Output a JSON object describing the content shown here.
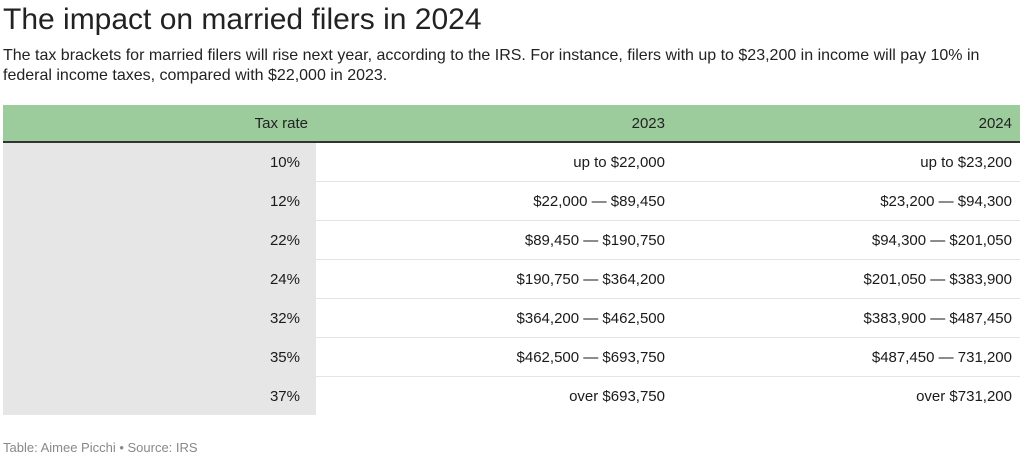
{
  "title": "The impact on married filers in 2024",
  "subtitle": "The tax brackets for married filers will rise next year, according to the IRS. For instance, filers with up to $23,200 in income will pay 10% in federal income taxes, compared with $22,000 in 2023.",
  "footer": "Table: Aimee Picchi • Source: IRS",
  "colors": {
    "header_bg": "#9ccc9c",
    "rate_column_bg": "#e6e6e6"
  },
  "chart_data": {
    "type": "table",
    "columns": [
      "Tax rate",
      "2023",
      "2024"
    ],
    "rows": [
      [
        "10%",
        "up to $22,000",
        "up to $23,200"
      ],
      [
        "12%",
        "$22,000 — $89,450",
        "$23,200 — $94,300"
      ],
      [
        "22%",
        "$89,450 — $190,750",
        "$94,300 — $201,050"
      ],
      [
        "24%",
        "$190,750 — $364,200",
        "$201,050 — $383,900"
      ],
      [
        "32%",
        "$364,200 — $462,500",
        "$383,900 — $487,450"
      ],
      [
        "35%",
        "$462,500 — $693,750",
        "$487,450 — 731,200"
      ],
      [
        "37%",
        "over $693,750",
        "over $731,200"
      ]
    ]
  }
}
